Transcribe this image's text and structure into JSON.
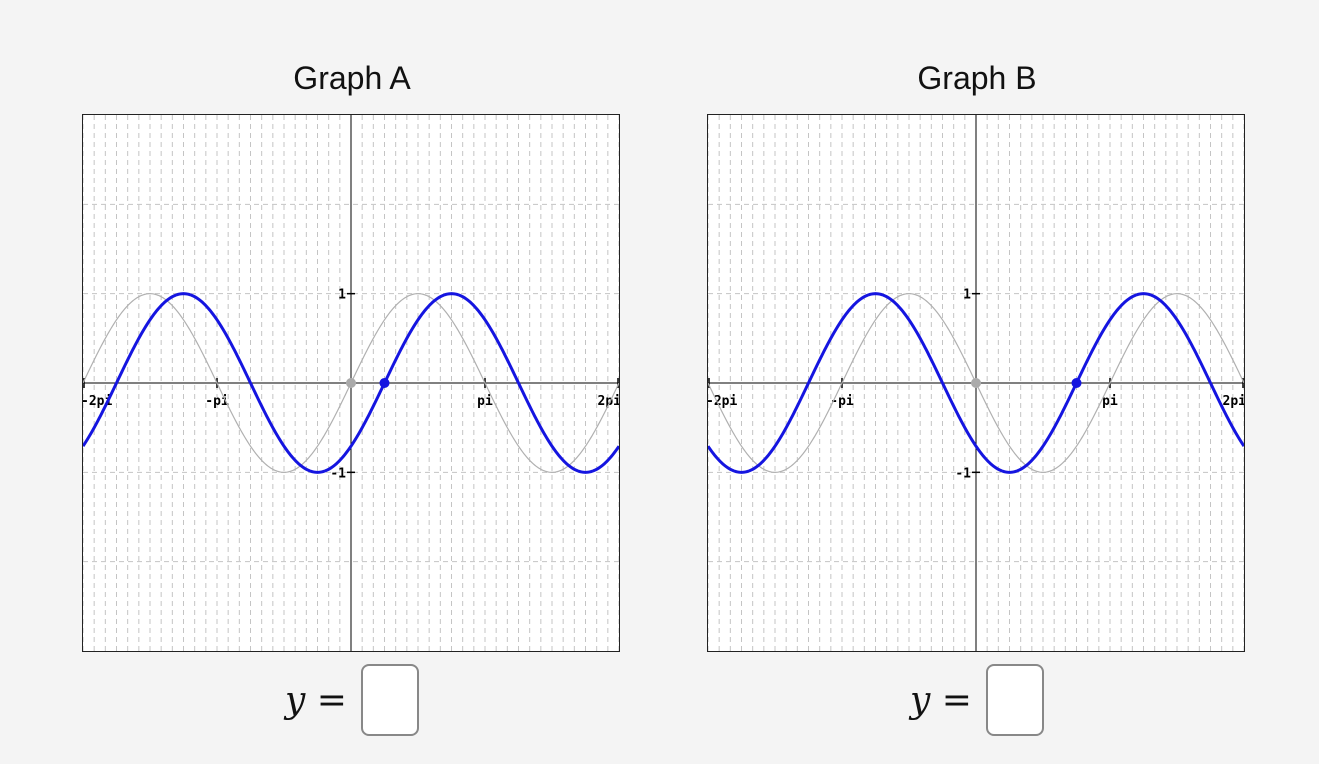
{
  "chart_data": [
    {
      "type": "line",
      "title": "Graph A",
      "x_tick_labels": [
        "-2pi",
        "-pi",
        "pi",
        "2pi"
      ],
      "y_tick_labels": [
        "1",
        "-1"
      ],
      "xlim": [
        -6.2832,
        6.2832
      ],
      "ylim": [
        -3,
        3
      ],
      "grid": true,
      "series": [
        {
          "role": "reference",
          "function": "sin(x)",
          "color": "#b0b0b0",
          "marked_point": {
            "x": 0,
            "y": 0,
            "color": "#aaaaaa"
          }
        },
        {
          "role": "transformed",
          "function": "sin(x - pi/4)",
          "color": "#1515e0",
          "marked_point": {
            "x": 0.7854,
            "y": 0,
            "color": "#1515e0"
          }
        }
      ]
    },
    {
      "type": "line",
      "title": "Graph B",
      "x_tick_labels": [
        "-2pi",
        "-pi",
        "pi",
        "2pi"
      ],
      "y_tick_labels": [
        "1",
        "-1"
      ],
      "xlim": [
        -6.2832,
        6.2832
      ],
      "ylim": [
        -3,
        3
      ],
      "grid": true,
      "series": [
        {
          "role": "reference",
          "function": "-sin(x)",
          "color": "#b0b0b0",
          "marked_point": {
            "x": 0,
            "y": 0,
            "color": "#aaaaaa"
          }
        },
        {
          "role": "transformed",
          "function": "sin(x - 3pi/4)",
          "color": "#1515e0",
          "marked_point": {
            "x": 2.3562,
            "y": 0,
            "color": "#1515e0"
          }
        }
      ]
    }
  ],
  "answers": [
    {
      "label": "y =",
      "value": ""
    },
    {
      "label": "y =",
      "value": ""
    }
  ]
}
